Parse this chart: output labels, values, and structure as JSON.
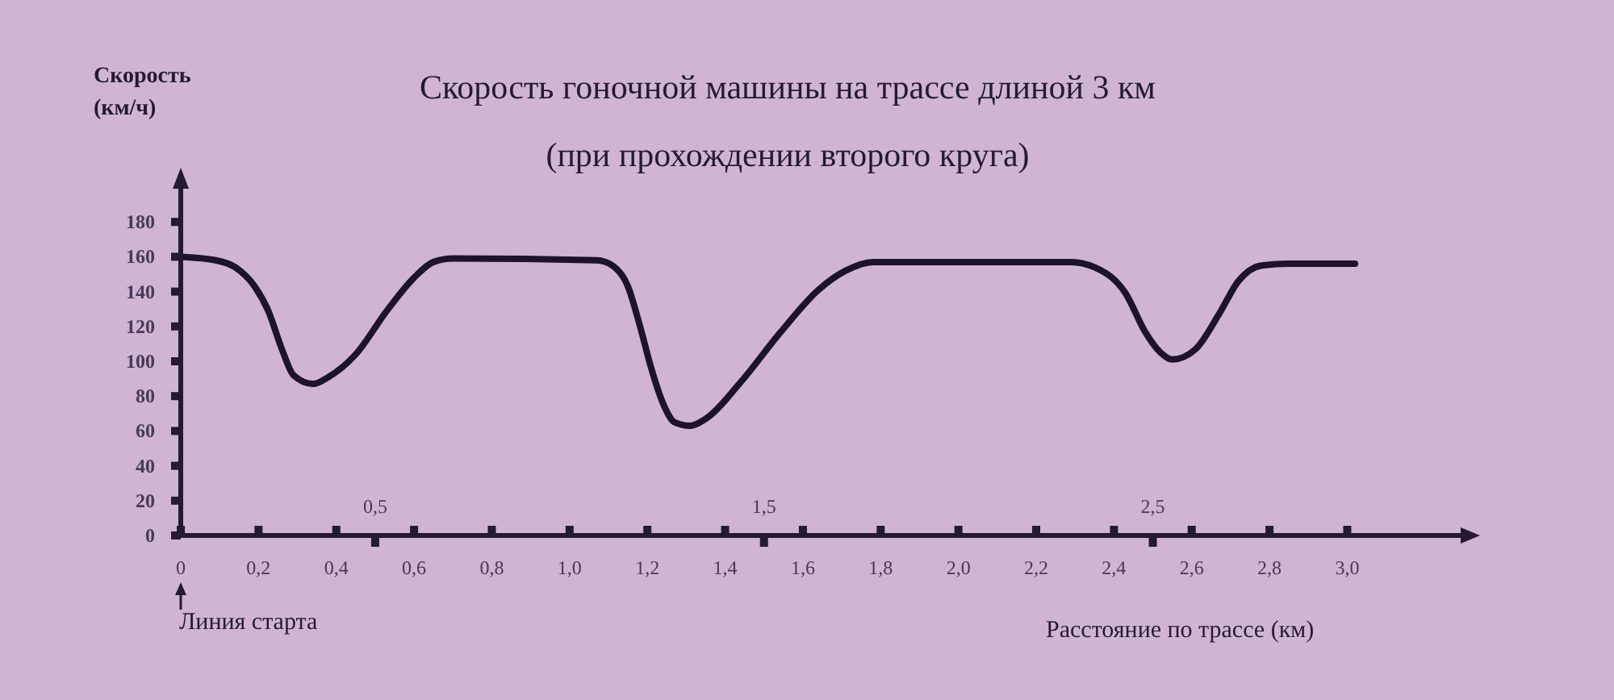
{
  "chart_data": {
    "type": "line",
    "title": "Скорость гоночной машины на трассе длиной 3 км",
    "subtitle": "(при прохождении второго круга)",
    "xlabel": "Расстояние по трассе (км)",
    "ylabel": "Скорость (км/ч)",
    "annotations": [
      "Линия старта"
    ],
    "x": [
      0,
      0.09,
      0.14,
      0.19,
      0.225,
      0.26,
      0.29,
      0.34,
      0.38,
      0.45,
      0.53,
      0.6,
      0.65,
      0.7,
      1.07,
      1.11,
      1.15,
      1.18,
      1.21,
      1.24,
      1.27,
      1.31,
      1.35,
      1.44,
      1.54,
      1.64,
      1.71,
      1.78,
      2.29,
      2.35,
      2.43,
      2.48,
      2.52,
      2.55,
      2.61,
      2.67,
      2.72,
      2.78,
      2.85,
      3.02
    ],
    "series": [
      {
        "color": "#1c1428",
        "values": [
          160,
          158,
          154,
          143,
          129,
          107,
          92,
          87,
          91,
          104,
          129,
          148,
          157,
          159,
          158,
          155,
          143,
          121,
          96,
          76,
          65,
          63,
          67,
          88,
          116,
          141,
          152,
          157,
          157,
          154,
          139,
          117,
          105,
          101,
          107,
          127,
          146,
          155,
          156,
          156
        ]
      }
    ],
    "xlim": [
      0,
      3.3
    ],
    "ylim": [
      0,
      200
    ],
    "xticks": [
      0,
      {
        "value": 0.2,
        "label": "0,2"
      },
      {
        "value": 0.4,
        "label": "0,4"
      },
      {
        "value": 0.6,
        "label": "0,6"
      },
      {
        "value": 0.8,
        "label": "0,8"
      },
      {
        "value": 1.0,
        "label": "1,0"
      },
      {
        "value": 1.2,
        "label": "1,2"
      },
      {
        "value": 1.4,
        "label": "1,4"
      },
      {
        "value": 1.6,
        "label": "1,6"
      },
      {
        "value": 1.8,
        "label": "1,8"
      },
      {
        "value": 2.0,
        "label": "2,0"
      },
      {
        "value": 2.2,
        "label": "2,2"
      },
      {
        "value": 2.4,
        "label": "2,4"
      },
      {
        "value": 2.6,
        "label": "2,6"
      },
      {
        "value": 2.8,
        "label": "2,8"
      },
      {
        "value": 3.0,
        "label": "3,0"
      }
    ],
    "x2lim": [
      0,
      3.3
    ],
    "x2ticks": [
      {
        "value": 0.5,
        "label": "0,5"
      },
      {
        "value": 1.5,
        "label": "1,5"
      },
      {
        "value": 2.5,
        "label": "2,5"
      }
    ],
    "yticks": [
      0,
      20,
      40,
      60,
      80,
      100,
      120,
      140,
      160,
      180
    ],
    "marker": "none",
    "line_style": "solid"
  }
}
